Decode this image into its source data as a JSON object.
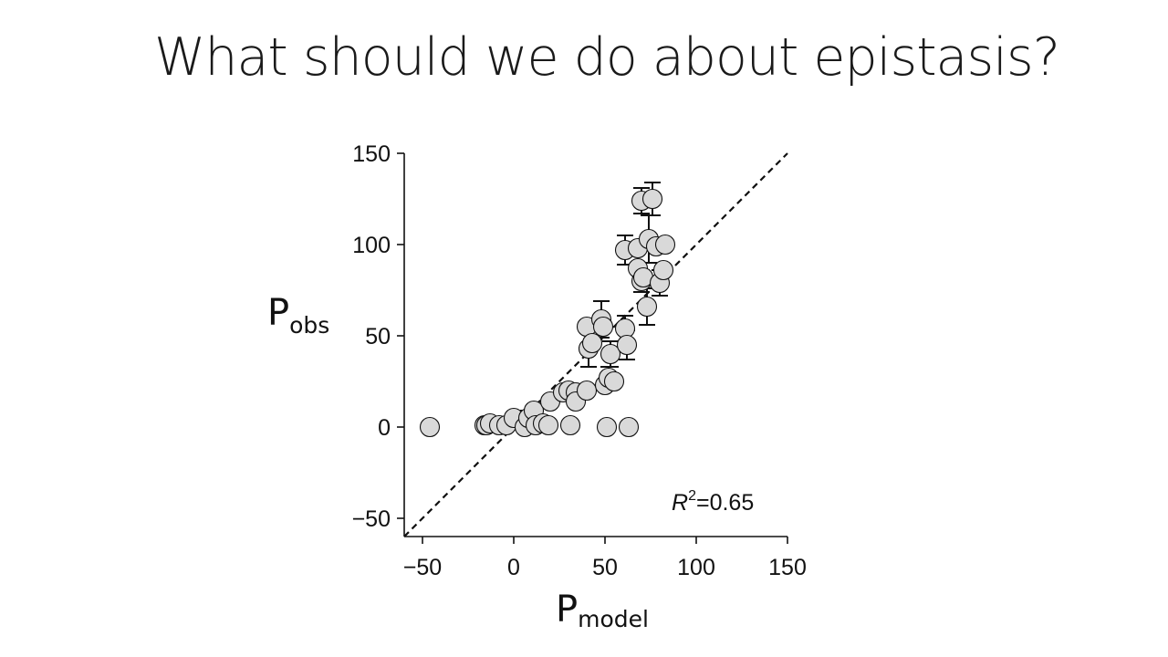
{
  "slide": {
    "title": "What should we do about epistasis?"
  },
  "chart_data": {
    "type": "scatter",
    "xlabel": {
      "main": "P",
      "sub": "model"
    },
    "ylabel": {
      "main": "P",
      "sub": "obs"
    },
    "xlim": [
      -60,
      150
    ],
    "ylim": [
      -60,
      150
    ],
    "xticks": [
      -50,
      0,
      50,
      100,
      150
    ],
    "yticks": [
      -50,
      0,
      50,
      100,
      150
    ],
    "tick_labels_x": [
      "−50",
      "0",
      "50",
      "100",
      "150"
    ],
    "tick_labels_y": [
      "−50",
      "0",
      "50",
      "100",
      "150"
    ],
    "reference_line": {
      "type": "identity",
      "style": "dashed"
    },
    "annotation": {
      "symbol": "R",
      "exponent": "2",
      "text": "=0.65"
    },
    "marker_color": "#d9d9d9",
    "marker_edge_color": "#111111",
    "points": [
      {
        "x": -46,
        "y": 0
      },
      {
        "x": -16,
        "y": 1
      },
      {
        "x": -15,
        "y": 1
      },
      {
        "x": -13,
        "y": 2
      },
      {
        "x": -8,
        "y": 1
      },
      {
        "x": -4,
        "y": 1
      },
      {
        "x": 0,
        "y": 5
      },
      {
        "x": 6,
        "y": 0
      },
      {
        "x": 8,
        "y": 5,
        "err": 4
      },
      {
        "x": 11,
        "y": 9
      },
      {
        "x": 12,
        "y": 1
      },
      {
        "x": 16,
        "y": 2
      },
      {
        "x": 19,
        "y": 1
      },
      {
        "x": 20,
        "y": 14
      },
      {
        "x": 27,
        "y": 19
      },
      {
        "x": 30,
        "y": 20
      },
      {
        "x": 31,
        "y": 1
      },
      {
        "x": 34,
        "y": 19,
        "err": 3
      },
      {
        "x": 34,
        "y": 14
      },
      {
        "x": 40,
        "y": 20
      },
      {
        "x": 40,
        "y": 55
      },
      {
        "x": 41,
        "y": 43,
        "err": 10
      },
      {
        "x": 43,
        "y": 46
      },
      {
        "x": 48,
        "y": 59,
        "err": 10
      },
      {
        "x": 49,
        "y": 55
      },
      {
        "x": 50,
        "y": 23
      },
      {
        "x": 51,
        "y": 0
      },
      {
        "x": 52,
        "y": 27,
        "err": 6
      },
      {
        "x": 53,
        "y": 40,
        "err": 7
      },
      {
        "x": 55,
        "y": 25
      },
      {
        "x": 61,
        "y": 97,
        "err": 8
      },
      {
        "x": 61,
        "y": 54,
        "err": 7
      },
      {
        "x": 62,
        "y": 45,
        "err": 8
      },
      {
        "x": 63,
        "y": 0
      },
      {
        "x": 68,
        "y": 98
      },
      {
        "x": 68,
        "y": 87
      },
      {
        "x": 70,
        "y": 124,
        "err": 7
      },
      {
        "x": 70,
        "y": 80,
        "err": 6
      },
      {
        "x": 71,
        "y": 82
      },
      {
        "x": 73,
        "y": 66,
        "err": 10
      },
      {
        "x": 74,
        "y": 103,
        "err": 13
      },
      {
        "x": 76,
        "y": 125,
        "err": 9
      },
      {
        "x": 78,
        "y": 99
      },
      {
        "x": 80,
        "y": 79,
        "err": 7
      },
      {
        "x": 82,
        "y": 86
      },
      {
        "x": 83,
        "y": 100
      }
    ]
  }
}
